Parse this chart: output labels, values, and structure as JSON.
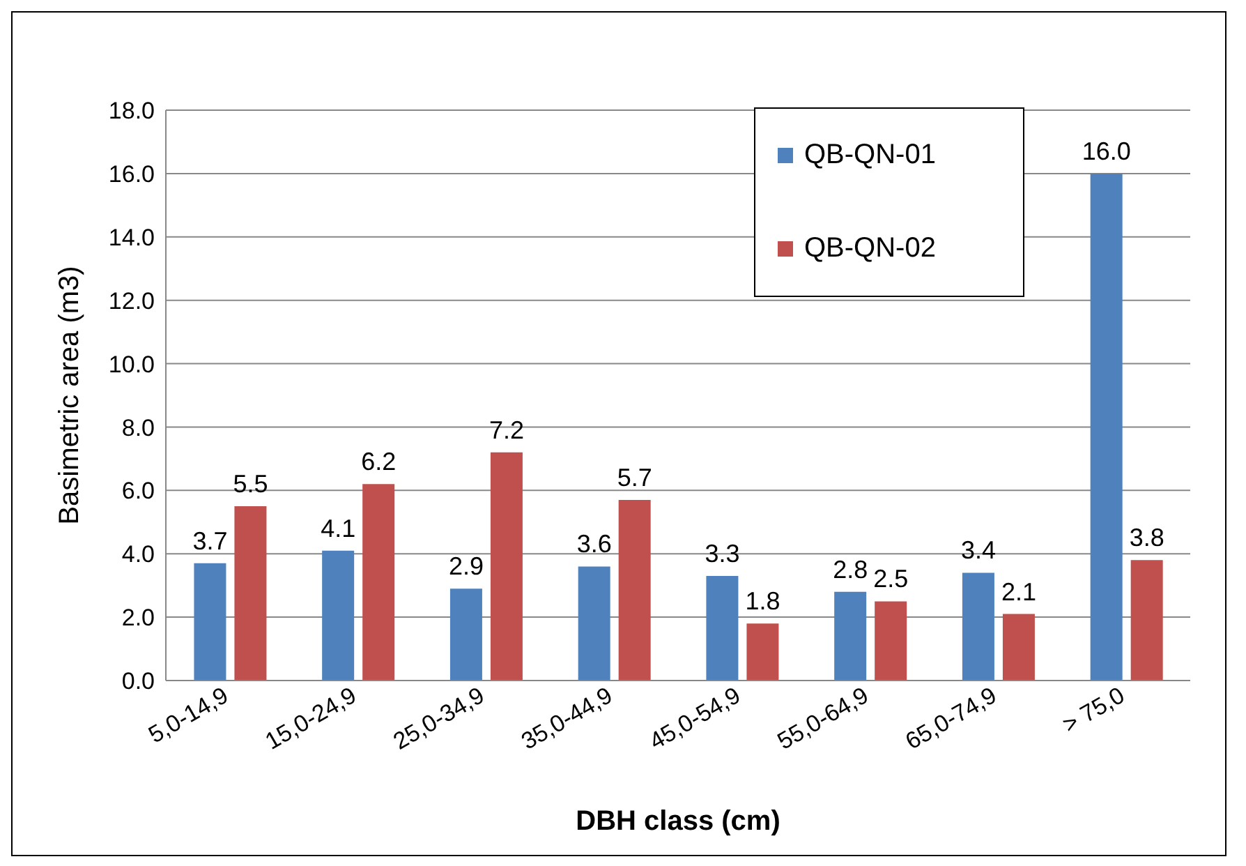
{
  "chart_data": {
    "type": "bar",
    "xlabel": "DBH class (cm)",
    "ylabel": "Basimetric area (m3)",
    "categories": [
      "5,0-14,9",
      "15,0-24,9",
      "25,0-34,9",
      "35,0-44,9",
      "45,0-54,9",
      "55,0-64,9",
      "65,0-74,9",
      "> 75,0"
    ],
    "series": [
      {
        "name": "QB-QN-01",
        "color": "#4f81bd",
        "values": [
          3.7,
          4.1,
          2.9,
          3.6,
          3.3,
          2.8,
          3.4,
          16.0
        ],
        "value_labels": [
          "3.7",
          "4.1",
          "2.9",
          "3.6",
          "3.3",
          "2.8",
          "3.4",
          "16.0"
        ]
      },
      {
        "name": "QB-QN-02",
        "color": "#c0504d",
        "values": [
          5.5,
          6.2,
          7.2,
          5.7,
          1.8,
          2.5,
          2.1,
          3.8
        ],
        "value_labels": [
          "5.5",
          "6.2",
          "7.2",
          "5.7",
          "1.8",
          "2.5",
          "2.1",
          "3.8"
        ]
      }
    ],
    "ylim": [
      0,
      18
    ],
    "yticks": [
      {
        "value": 0,
        "label": "0.0"
      },
      {
        "value": 2,
        "label": "2.0"
      },
      {
        "value": 4,
        "label": "4.0"
      },
      {
        "value": 6,
        "label": "6.0"
      },
      {
        "value": 8,
        "label": "8.0"
      },
      {
        "value": 10,
        "label": "10.0"
      },
      {
        "value": 12,
        "label": "12.0"
      },
      {
        "value": 14,
        "label": "14.0"
      },
      {
        "value": 16,
        "label": "16.0"
      },
      {
        "value": 18,
        "label": "18.0"
      }
    ],
    "grid": "y",
    "legend": "top right"
  }
}
